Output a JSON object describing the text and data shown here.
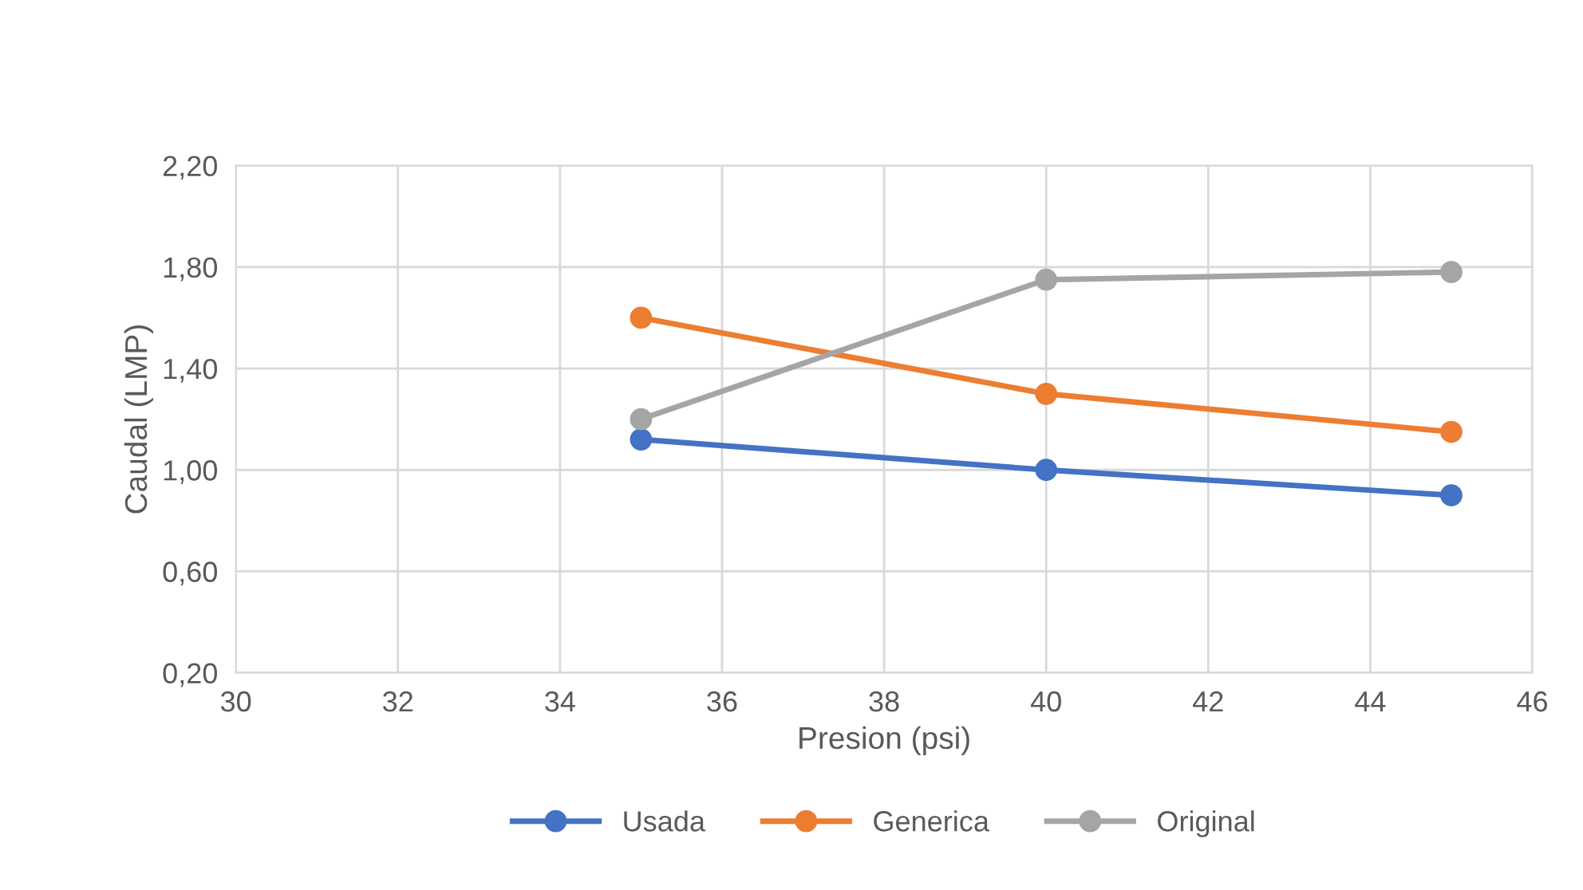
{
  "chart_data": {
    "type": "line",
    "xlabel": "Presion (psi)",
    "ylabel": "Caudal (LMP)",
    "x": [
      35,
      40,
      45
    ],
    "series": [
      {
        "name": "Usada",
        "color": "#4472c4",
        "values": [
          1.12,
          1.0,
          0.9
        ]
      },
      {
        "name": "Generica",
        "color": "#ed7d31",
        "values": [
          1.6,
          1.3,
          1.15
        ]
      },
      {
        "name": "Original",
        "color": "#a5a5a5",
        "values": [
          1.2,
          1.75,
          1.78
        ]
      }
    ],
    "xlim": [
      30,
      46
    ],
    "xticks": [
      30,
      32,
      34,
      36,
      38,
      40,
      42,
      44,
      46
    ],
    "ylim": [
      0.2,
      2.2
    ],
    "yticks": [
      {
        "value": 0.2,
        "label": "0,20"
      },
      {
        "value": 0.6,
        "label": "0,60"
      },
      {
        "value": 1.0,
        "label": "1,00"
      },
      {
        "value": 1.4,
        "label": "1,40"
      },
      {
        "value": 1.8,
        "label": "1,80"
      },
      {
        "value": 2.2,
        "label": "2,20"
      }
    ],
    "grid": true,
    "legend": "bottom",
    "marker": "circle",
    "line_style": "solid"
  }
}
